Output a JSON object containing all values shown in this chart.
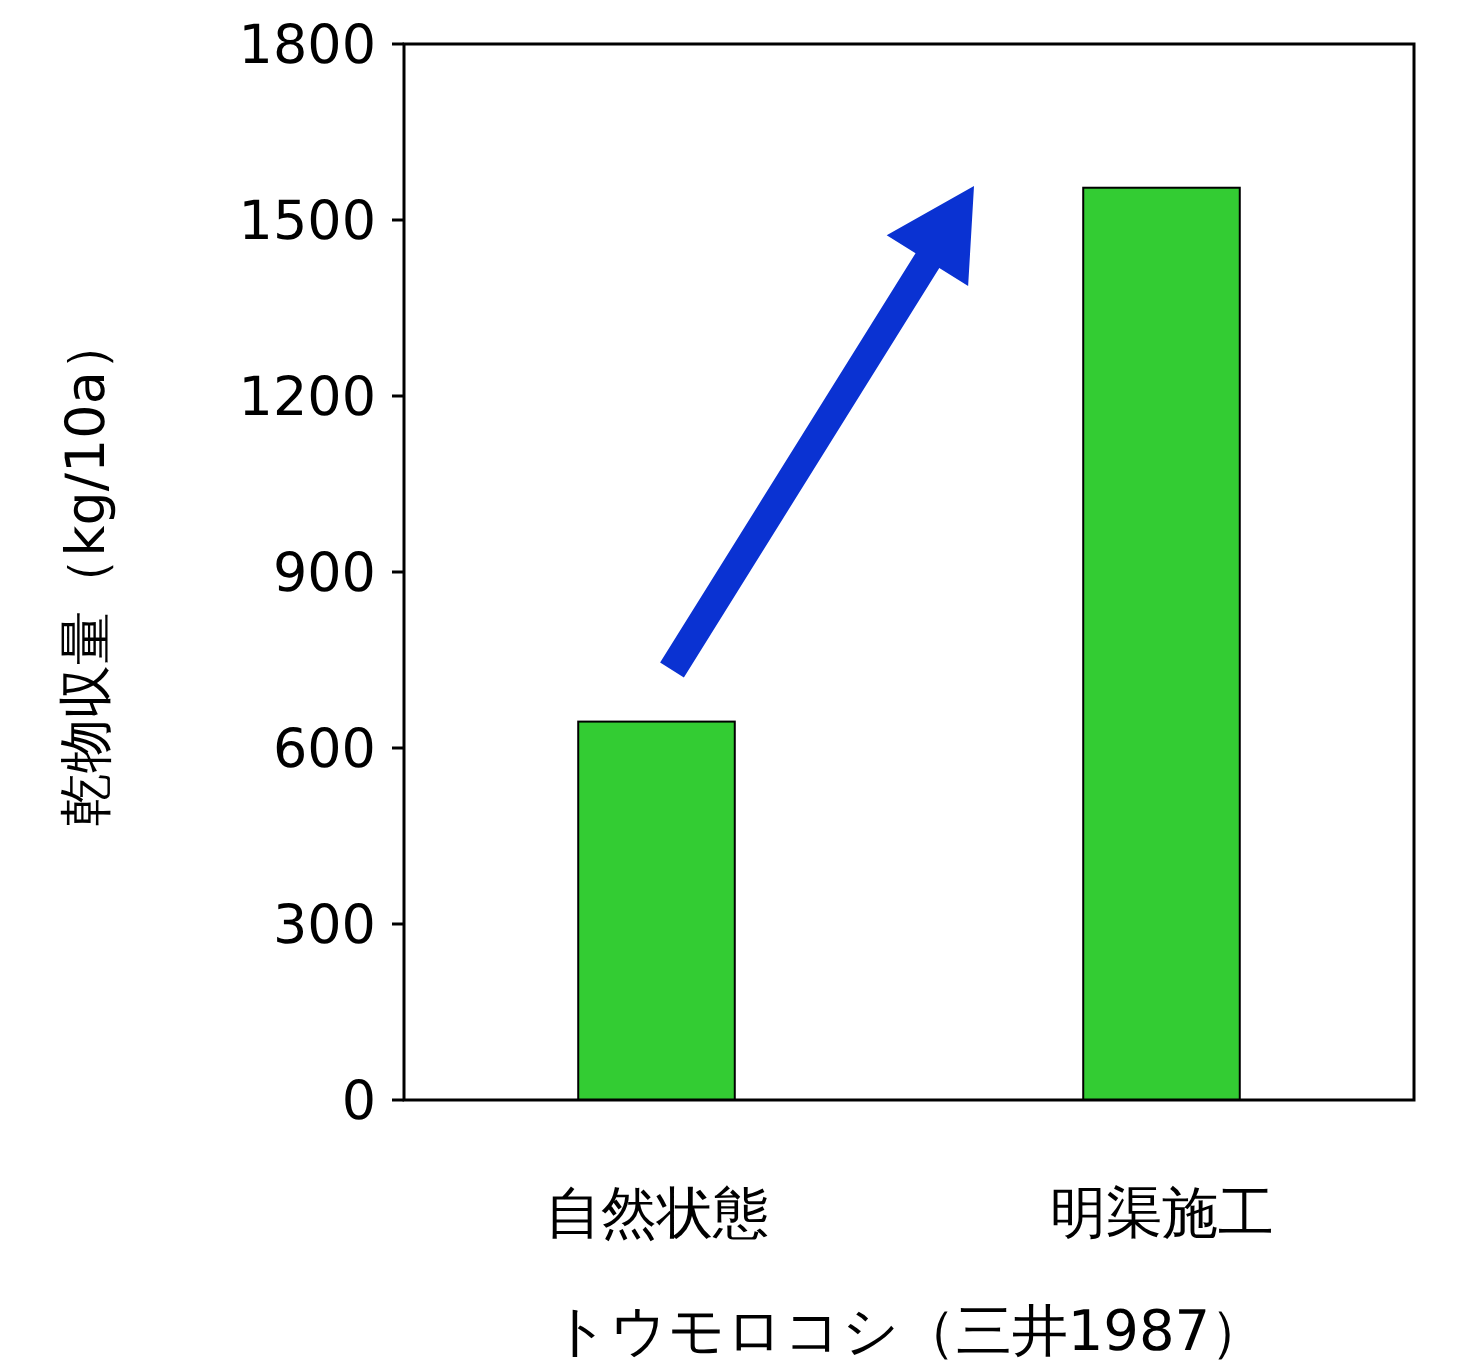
{
  "chart_data": {
    "type": "bar",
    "categories": [
      "自然状態",
      "明渠施工"
    ],
    "values": [
      645,
      1555
    ],
    "color": "#33cc33",
    "ylabel": "乾物収量（kg/10a）",
    "xlabel": "トウモロコシ（三井1987）",
    "ylim": [
      0,
      1800
    ],
    "yticks": [
      0,
      300,
      600,
      900,
      1200,
      1500,
      1800
    ],
    "grid": false
  }
}
